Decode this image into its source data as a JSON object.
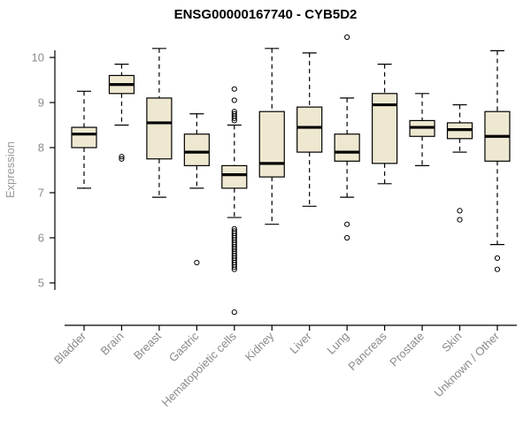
{
  "chart_data": {
    "type": "boxplot",
    "title": "ENSG00000167740 - CYB5D2",
    "ylabel": "Expression",
    "ylim": [
      4.2,
      10.6
    ],
    "yticks": [
      5,
      6,
      7,
      8,
      9,
      10
    ],
    "grid": false,
    "legend": "none",
    "box_fill": "#efe8d1",
    "line_color": "#000000",
    "axis_label_color": "#8a8a8a",
    "categories": [
      "Bladder",
      "Brain",
      "Breast",
      "Gastric",
      "Hematopoietic cells",
      "Kidney",
      "Liver",
      "Lung",
      "Pancreas",
      "Prostate",
      "Skin",
      "Unknown / Other"
    ],
    "boxes": [
      {
        "category": "Bladder",
        "low": 7.1,
        "q1": 8.0,
        "median": 8.3,
        "q3": 8.45,
        "high": 9.25,
        "outliers": []
      },
      {
        "category": "Brain",
        "low": 8.5,
        "q1": 9.2,
        "median": 9.4,
        "q3": 9.6,
        "high": 9.85,
        "outliers": [
          7.8,
          7.75
        ]
      },
      {
        "category": "Breast",
        "low": 6.9,
        "q1": 7.75,
        "median": 8.55,
        "q3": 9.1,
        "high": 10.2,
        "outliers": []
      },
      {
        "category": "Gastric",
        "low": 7.1,
        "q1": 7.6,
        "median": 7.9,
        "q3": 8.3,
        "high": 8.75,
        "outliers": [
          5.45
        ]
      },
      {
        "category": "Hematopoietic cells",
        "low": 6.45,
        "q1": 7.1,
        "median": 7.4,
        "q3": 7.6,
        "high": 8.5,
        "outliers": [
          9.3,
          9.05,
          8.8,
          8.75,
          8.7,
          8.65,
          8.6,
          6.2,
          6.15,
          6.1,
          6.05,
          6.0,
          5.95,
          5.9,
          5.85,
          5.8,
          5.75,
          5.7,
          5.65,
          5.6,
          5.55,
          5.5,
          5.45,
          5.4,
          5.35,
          5.3,
          4.35
        ]
      },
      {
        "category": "Kidney",
        "low": 6.3,
        "q1": 7.35,
        "median": 7.65,
        "q3": 8.8,
        "high": 10.2,
        "outliers": []
      },
      {
        "category": "Liver",
        "low": 6.7,
        "q1": 7.9,
        "median": 8.45,
        "q3": 8.9,
        "high": 10.1,
        "outliers": []
      },
      {
        "category": "Lung",
        "low": 6.9,
        "q1": 7.7,
        "median": 7.9,
        "q3": 8.3,
        "high": 9.1,
        "outliers": [
          10.45,
          6.3,
          6.0
        ]
      },
      {
        "category": "Pancreas",
        "low": 7.2,
        "q1": 7.65,
        "median": 8.95,
        "q3": 9.2,
        "high": 9.85,
        "outliers": []
      },
      {
        "category": "Prostate",
        "low": 7.6,
        "q1": 8.25,
        "median": 8.45,
        "q3": 8.6,
        "high": 9.2,
        "outliers": []
      },
      {
        "category": "Skin",
        "low": 7.9,
        "q1": 8.2,
        "median": 8.4,
        "q3": 8.55,
        "high": 8.95,
        "outliers": [
          6.6,
          6.4
        ]
      },
      {
        "category": "Unknown / Other",
        "low": 5.85,
        "q1": 7.7,
        "median": 8.25,
        "q3": 8.8,
        "high": 10.15,
        "outliers": [
          5.55,
          5.3
        ]
      }
    ]
  }
}
